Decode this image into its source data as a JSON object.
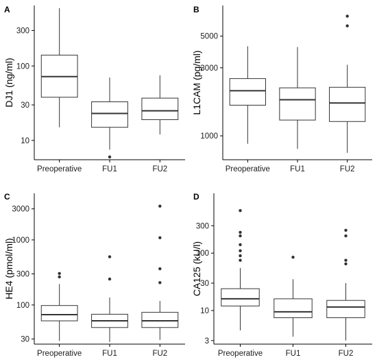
{
  "chart_data": [
    {
      "type": "box",
      "panel_label": "A",
      "ylabel": "DJ1 (ng/ml)",
      "y_scale": "log",
      "ylim": [
        5.5,
        650
      ],
      "yticks": [
        10,
        30,
        100,
        300
      ],
      "ytick_labels": [
        "10",
        "30",
        "100",
        "300"
      ],
      "categories": [
        "Preoperative",
        "FU1",
        "FU2"
      ],
      "boxes": [
        {
          "whisker_low": 15,
          "q1": 38,
          "median": 72,
          "q3": 140,
          "whisker_high": 600,
          "outliers": []
        },
        {
          "whisker_low": 7.5,
          "q1": 15,
          "median": 23,
          "q3": 33,
          "whisker_high": 70,
          "outliers": [
            6
          ]
        },
        {
          "whisker_low": 12,
          "q1": 19,
          "median": 25,
          "q3": 37,
          "whisker_high": 75,
          "outliers": []
        }
      ]
    },
    {
      "type": "box",
      "panel_label": "B",
      "ylabel": "L1CAM (pg/ml)",
      "y_scale": "log",
      "ylim": [
        680,
        8200
      ],
      "yticks": [
        1000,
        3000,
        5000
      ],
      "ytick_labels": [
        "1000",
        "3000",
        "5000"
      ],
      "categories": [
        "Preoperative",
        "FU1",
        "FU2"
      ],
      "boxes": [
        {
          "whisker_low": 880,
          "q1": 1640,
          "median": 2070,
          "q3": 2520,
          "whisker_high": 4250,
          "outliers": []
        },
        {
          "whisker_low": 810,
          "q1": 1290,
          "median": 1790,
          "q3": 2170,
          "whisker_high": 4200,
          "outliers": []
        },
        {
          "whisker_low": 760,
          "q1": 1260,
          "median": 1700,
          "q3": 2190,
          "whisker_high": 3150,
          "outliers": [
            5900,
            6900
          ]
        }
      ]
    },
    {
      "type": "box",
      "panel_label": "C",
      "ylabel": "HE4 (pmol/ml)",
      "y_scale": "log",
      "ylim": [
        25,
        5200
      ],
      "yticks": [
        30,
        100,
        300,
        1000,
        3000
      ],
      "ytick_labels": [
        "30",
        "100",
        "300",
        "1000",
        "3000"
      ],
      "categories": [
        "Preoperative",
        "FU1",
        "FU2"
      ],
      "boxes": [
        {
          "whisker_low": 28,
          "q1": 57,
          "median": 71,
          "q3": 98,
          "whisker_high": 210,
          "outliers": [
            270,
            305
          ]
        },
        {
          "whisker_low": 27,
          "q1": 45,
          "median": 57,
          "q3": 72,
          "whisker_high": 130,
          "outliers": [
            250,
            550
          ]
        },
        {
          "whisker_low": 29,
          "q1": 45,
          "median": 57,
          "q3": 77,
          "whisker_high": 115,
          "outliers": [
            220,
            360,
            1080,
            3300
          ]
        }
      ]
    },
    {
      "type": "box",
      "panel_label": "D",
      "ylabel": "CA125 (kU/l)",
      "y_scale": "log",
      "ylim": [
        2.6,
        1100
      ],
      "yticks": [
        3,
        10,
        30,
        100,
        300
      ],
      "ytick_labels": [
        "3",
        "10",
        "30",
        "100",
        "300"
      ],
      "categories": [
        "Preoperative",
        "FU1",
        "FU2"
      ],
      "boxes": [
        {
          "whisker_low": 4.5,
          "q1": 12,
          "median": 16,
          "q3": 24,
          "whisker_high": 55,
          "outliers": [
            75,
            90,
            110,
            140,
            200,
            230,
            550
          ]
        },
        {
          "whisker_low": 3.5,
          "q1": 7.5,
          "median": 9.5,
          "q3": 16,
          "whisker_high": 35,
          "outliers": [
            85
          ]
        },
        {
          "whisker_low": 3,
          "q1": 7.5,
          "median": 11.5,
          "q3": 15,
          "whisker_high": 30,
          "outliers": [
            65,
            75,
            200,
            250
          ]
        }
      ]
    }
  ]
}
